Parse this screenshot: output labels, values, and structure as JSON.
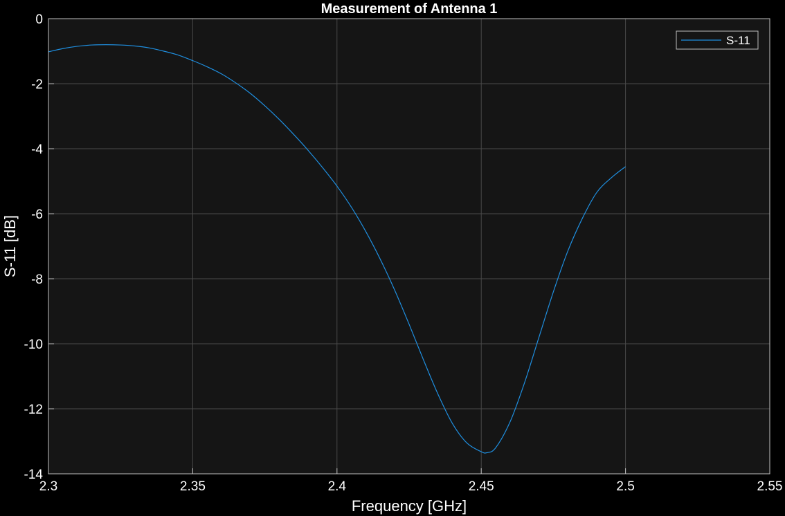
{
  "figure": {
    "background": "#000000"
  },
  "chart_data": {
    "type": "line",
    "title": "Measurement of Antenna 1",
    "xlabel": "Frequency [GHz]",
    "ylabel": "S-11 [dB]",
    "xlim": [
      2.3,
      2.55
    ],
    "ylim": [
      -14,
      0
    ],
    "xticks": [
      2.3,
      2.35,
      2.4,
      2.45,
      2.5,
      2.55
    ],
    "xtick_labels": [
      "2.3",
      "2.35",
      "2.4",
      "2.45",
      "2.5",
      "2.55"
    ],
    "yticks": [
      0,
      -2,
      -4,
      -6,
      -8,
      -10,
      -12,
      -14
    ],
    "ytick_labels": [
      "0",
      "-2",
      "-4",
      "-6",
      "-8",
      "-10",
      "-12",
      "-14"
    ],
    "grid": true,
    "legend_position": "top-right",
    "colors": {
      "axes_bg": "#151515",
      "grid": "#4a4a4a",
      "axis_line": "#bfbfbf",
      "text": "#ffffff"
    },
    "series": [
      {
        "name": "S-11",
        "color": "#1f8fe0",
        "x": [
          2.3,
          2.305,
          2.31,
          2.315,
          2.32,
          2.325,
          2.33,
          2.335,
          2.34,
          2.345,
          2.35,
          2.355,
          2.36,
          2.365,
          2.37,
          2.375,
          2.38,
          2.385,
          2.39,
          2.395,
          2.4,
          2.405,
          2.41,
          2.415,
          2.42,
          2.425,
          2.43,
          2.435,
          2.44,
          2.445,
          2.45,
          2.452,
          2.455,
          2.46,
          2.465,
          2.47,
          2.475,
          2.48,
          2.485,
          2.49,
          2.495,
          2.5
        ],
        "y": [
          -1.02,
          -0.92,
          -0.85,
          -0.81,
          -0.8,
          -0.81,
          -0.84,
          -0.9,
          -1.0,
          -1.12,
          -1.29,
          -1.48,
          -1.7,
          -1.98,
          -2.3,
          -2.68,
          -3.1,
          -3.56,
          -4.05,
          -4.58,
          -5.15,
          -5.8,
          -6.55,
          -7.4,
          -8.35,
          -9.4,
          -10.5,
          -11.55,
          -12.45,
          -13.05,
          -13.32,
          -13.35,
          -13.2,
          -12.4,
          -11.2,
          -9.8,
          -8.4,
          -7.15,
          -6.15,
          -5.35,
          -4.9,
          -4.55
        ]
      }
    ]
  }
}
